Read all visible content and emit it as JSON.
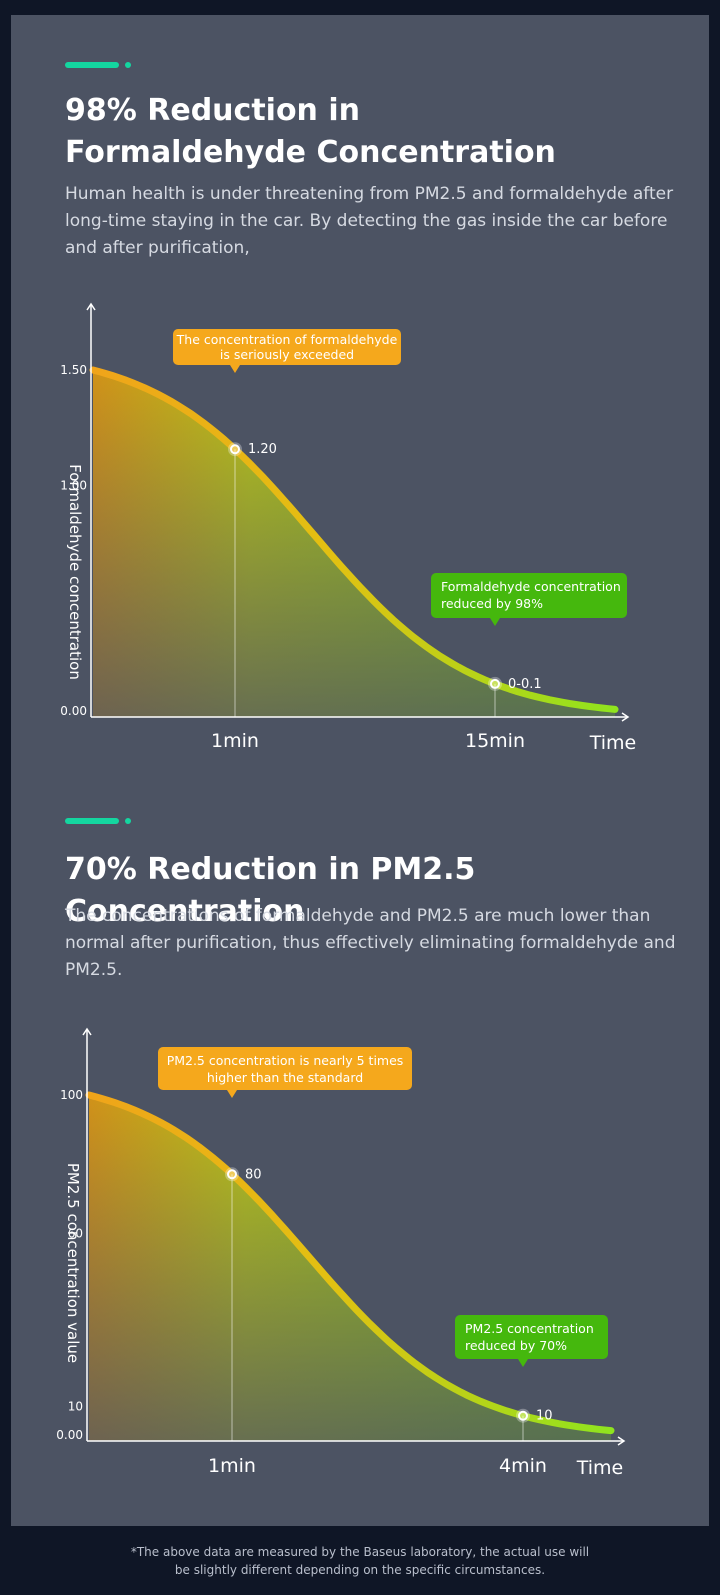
{
  "colors": {
    "accent": "#14d6a0",
    "orange": "#f0a41a",
    "yellow_green": "#b5d11c",
    "green": "#7fe11e",
    "callout_orange": "#f5a81c",
    "callout_green": "#45b80d",
    "axis": "#ffffff"
  },
  "sections": [
    {
      "title_line1": "98% Reduction in",
      "title_line2": "Formaldehyde Concentration",
      "description": "Human health is under threatening from PM2.5 and formaldehyde after long-time staying in the car. By detecting the gas inside the car before and after purification,"
    },
    {
      "title_line1": "70% Reduction in PM2.5 Concentration",
      "title_line2": "",
      "description": "The concentrations of formaldehyde and PM2.5 are much lower than normal after purification, thus effectively eliminating formaldehyde and PM2.5."
    }
  ],
  "chart_data": [
    {
      "type": "area",
      "ylabel": "Formaldehyde concentration",
      "xlabel": "Time",
      "ylim": [
        0,
        1.5
      ],
      "y_ticks": [
        "1.50",
        "1.00",
        "0.00"
      ],
      "y_tick_values": [
        1.5,
        1.0,
        0.0
      ],
      "x_ticks": [
        "1min",
        "15min"
      ],
      "points": [
        {
          "label": "1.20",
          "x_label": "1min",
          "y": 1.2
        },
        {
          "label": "0-0.1",
          "x_label": "15min",
          "y": 0.1
        }
      ],
      "callouts": [
        {
          "text_line1": "The concentration of formaldehyde",
          "text_line2": "is seriously exceeded",
          "style": "orange"
        },
        {
          "text_line1": "Formaldehyde concentration",
          "text_line2": "reduced by 98%",
          "style": "green"
        }
      ]
    },
    {
      "type": "area",
      "ylabel": "PM2.5 concentration value",
      "xlabel": "Time",
      "ylim": [
        0,
        100
      ],
      "y_ticks": [
        "100",
        "60",
        "10",
        "0.00"
      ],
      "y_tick_values": [
        100,
        60,
        10,
        0
      ],
      "x_ticks": [
        "1min",
        "4min"
      ],
      "points": [
        {
          "label": "80",
          "x_label": "1min",
          "y": 80
        },
        {
          "label": "10",
          "x_label": "4min",
          "y": 10
        }
      ],
      "callouts": [
        {
          "text_line1": "PM2.5 concentration is nearly 5 times",
          "text_line2": "higher than the standard",
          "style": "orange"
        },
        {
          "text_line1": "PM2.5 concentration",
          "text_line2": "reduced by 70%",
          "style": "green"
        }
      ]
    }
  ],
  "footnote": {
    "line1": "*The above data are measured by the Baseus laboratory, the actual use will",
    "line2": "be slightly different depending on the specific circumstances."
  }
}
